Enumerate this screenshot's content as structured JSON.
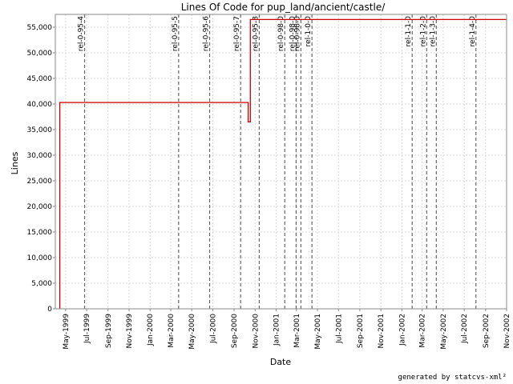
{
  "chart_data": {
    "type": "line",
    "title": "Lines Of Code for pup_land/ancient/castle/",
    "xlabel": "Date",
    "ylabel": "Lines",
    "ylim": [
      0,
      57500
    ],
    "y_ticks": [
      0,
      5000,
      10000,
      15000,
      20000,
      25000,
      30000,
      35000,
      40000,
      45000,
      50000,
      55000
    ],
    "y_tick_labels": [
      "0",
      "5,000",
      "10,000",
      "15,000",
      "20,000",
      "25,000",
      "30,000",
      "35,000",
      "40,000",
      "45,000",
      "50,000",
      "55,000"
    ],
    "x_tick_labels": [
      "May-1999",
      "Jul-1999",
      "Sep-1999",
      "Nov-1999",
      "Jan-2000",
      "Mar-2000",
      "May-2000",
      "Jul-2000",
      "Sep-2000",
      "Nov-2000",
      "Jan-2001",
      "Mar-2001",
      "May-2001",
      "Jul-2001",
      "Sep-2001",
      "Nov-2001",
      "Jan-2002",
      "Mar-2002",
      "May-2002",
      "Jul-2002",
      "Sep-2002",
      "Nov-2002"
    ],
    "x_start": "Apr-1999",
    "x_end": "Nov-2002",
    "grid": true,
    "series": [
      {
        "color": "#cc0000",
        "points": [
          {
            "x": "1999-04-14",
            "y": 0
          },
          {
            "x": "1999-04-14",
            "y": 40300
          },
          {
            "x": "2000-10-12",
            "y": 40300
          },
          {
            "x": "2000-10-12",
            "y": 36500
          },
          {
            "x": "2000-10-18",
            "y": 36500
          },
          {
            "x": "2000-10-18",
            "y": 56500
          },
          {
            "x": "2002-11-01",
            "y": 56500
          }
        ]
      }
    ],
    "markers": [
      {
        "label": "rel-0-95-4",
        "x": "1999-06-25"
      },
      {
        "label": "rel-0-95-5",
        "x": "2000-03-24"
      },
      {
        "label": "rel-0-95-6",
        "x": "2000-06-22"
      },
      {
        "label": "rel-0-95-7",
        "x": "2000-09-20"
      },
      {
        "label": "rel-0-95-8",
        "x": "2000-11-13"
      },
      {
        "label": "rel-0-98-0",
        "x": "2001-01-26"
      },
      {
        "label": "rel-0-98-0",
        "x": "2001-02-28"
      },
      {
        "label": "rel-0-98-0",
        "x": "2001-03-14"
      },
      {
        "label": "rel-1-0-0",
        "x": "2001-04-15"
      },
      {
        "label": "rel-1-1-0",
        "x": "2002-01-31"
      },
      {
        "label": "rel-1-2-0",
        "x": "2002-03-14"
      },
      {
        "label": "rel-1-3-0",
        "x": "2002-04-11"
      },
      {
        "label": "rel-1-4-0",
        "x": "2002-08-04"
      }
    ]
  },
  "footer": "generated by statcvs-xml²"
}
